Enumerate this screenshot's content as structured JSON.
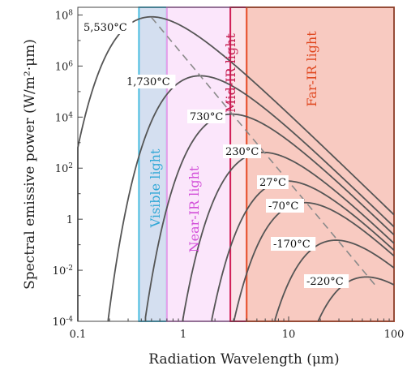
{
  "chart_data": {
    "type": "line",
    "xlabel": "Radiation Wavelength (μm)",
    "ylabel": "Spectral emissive power (W/m²·μm)",
    "xscale": "log",
    "yscale": "log",
    "xlim": [
      0.1,
      100
    ],
    "ylim": [
      0.0001,
      200000000
    ],
    "x_ticks": [
      {
        "value": 0.1,
        "label": "0.1"
      },
      {
        "value": 1,
        "label": "1"
      },
      {
        "value": 10,
        "label": "10"
      },
      {
        "value": 100,
        "label": "100"
      }
    ],
    "y_ticks": [
      {
        "value": 0.0001,
        "base": "10",
        "exp": "-4"
      },
      {
        "value": 0.01,
        "base": "10",
        "exp": "-2"
      },
      {
        "value": 1,
        "base": "1",
        "exp": ""
      },
      {
        "value": 100,
        "base": "10",
        "exp": "2"
      },
      {
        "value": 10000,
        "base": "10",
        "exp": "4"
      },
      {
        "value": 1000000,
        "base": "10",
        "exp": "6"
      },
      {
        "value": 100000000,
        "base": "10",
        "exp": "8"
      }
    ],
    "series": [
      {
        "label": "5,530°C",
        "temperature_c": 5530,
        "peak_wavelength_um": 0.5,
        "peak_power": 80000000
      },
      {
        "label": "1,730°C",
        "temperature_c": 1730,
        "peak_wavelength_um": 1.45,
        "peak_power": 320000
      },
      {
        "label": "730°C",
        "temperature_c": 730,
        "peak_wavelength_um": 2.9,
        "peak_power": 11000
      },
      {
        "label": "230°C",
        "temperature_c": 230,
        "peak_wavelength_um": 5.8,
        "peak_power": 340
      },
      {
        "label": "27°C",
        "temperature_c": 27,
        "peak_wavelength_um": 9.7,
        "peak_power": 31
      },
      {
        "label": "-70°C",
        "temperature_c": -70,
        "peak_wavelength_um": 14.3,
        "peak_power": 4.5
      },
      {
        "label": "-170°C",
        "temperature_c": -170,
        "peak_wavelength_um": 28.5,
        "peak_power": 0.14
      },
      {
        "label": "-220°C",
        "temperature_c": -220,
        "peak_wavelength_um": 54.8,
        "peak_power": 0.0055
      }
    ],
    "wien_line": {
      "style": "dashed",
      "from": [
        0.5,
        80000000
      ],
      "to": [
        70,
        0.002
      ]
    },
    "regions": [
      {
        "label": "Visible light",
        "from_um": 0.38,
        "to_um": 0.7,
        "fill": "#cfdcee",
        "stroke": "#4bbde0",
        "text_color": "#2fa7d6"
      },
      {
        "label": "Near-IR light",
        "from_um": 0.7,
        "to_um": 2.8,
        "fill": "#fbe3fb",
        "stroke": "#e49ee9",
        "text_color": "#d24fd8"
      },
      {
        "label": "Mid-IR light",
        "from_um": 2.8,
        "to_um": 4,
        "fill": "#fbe0e6",
        "stroke": "#d01f55",
        "text_color": "#c4184c"
      },
      {
        "label": "Far-IR light",
        "from_um": 4,
        "to_um": 100,
        "fill": "#f7c4ba",
        "stroke": "#e8552d",
        "text_color": "#e04a22"
      }
    ]
  }
}
